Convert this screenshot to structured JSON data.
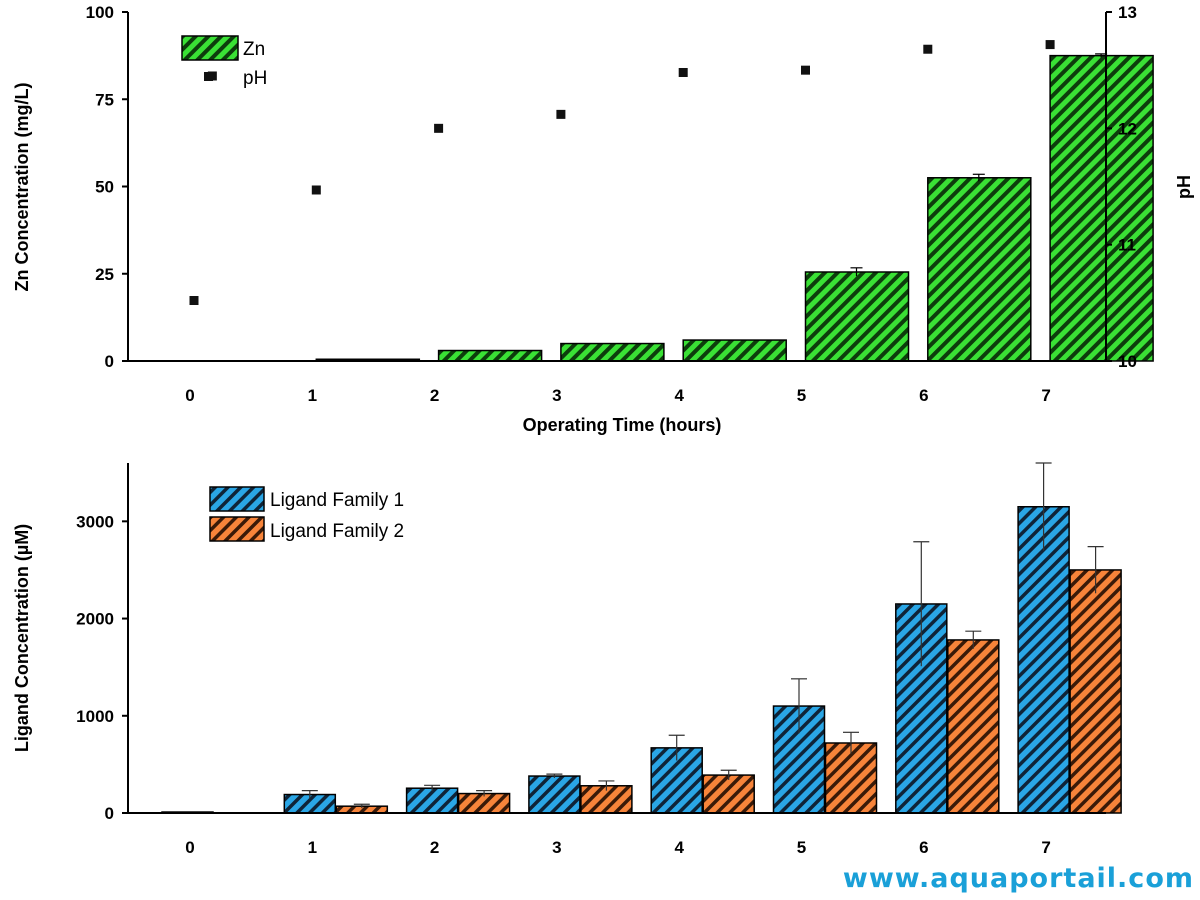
{
  "watermark": "www.aquaportail.com",
  "chart_data": [
    {
      "type": "bar",
      "x": [
        0,
        1,
        2,
        3,
        4,
        5,
        6,
        7
      ],
      "xlabel": "Operating Time (hours)",
      "ylabel": "Zn Concentration (mg/L)",
      "ylim": [
        0,
        100
      ],
      "yticks": [
        0,
        25,
        50,
        75,
        100
      ],
      "y2label": "pH",
      "y2lim": [
        10,
        13
      ],
      "y2ticks": [
        10,
        11,
        12,
        13
      ],
      "legend_position": "top-left",
      "series": [
        {
          "name": "Zn",
          "kind": "bar",
          "axis": "left",
          "color": "#22c21e",
          "values": [
            0,
            0.5,
            3,
            5,
            6,
            25.5,
            52.5,
            87.5
          ],
          "errors": [
            0,
            0,
            0,
            0,
            0,
            1.2,
            1.0,
            0.5
          ]
        },
        {
          "name": "pH",
          "kind": "scatter",
          "axis": "right",
          "color": "#111111",
          "points": [
            {
              "x": 0,
              "y": 10.52
            },
            {
              "x": 0.15,
              "y": 12.45
            },
            {
              "x": 1,
              "y": 11.47
            },
            {
              "x": 2,
              "y": 12.0
            },
            {
              "x": 3,
              "y": 12.12
            },
            {
              "x": 4,
              "y": 12.48
            },
            {
              "x": 5,
              "y": 12.5
            },
            {
              "x": 6,
              "y": 12.68
            },
            {
              "x": 7,
              "y": 12.72
            }
          ]
        }
      ]
    },
    {
      "type": "bar",
      "x": [
        0,
        1,
        2,
        3,
        4,
        5,
        6,
        7
      ],
      "xlabel": "",
      "ylabel": "Ligand Concentration (µM)",
      "ylim": [
        0,
        3600
      ],
      "yticks": [
        0,
        1000,
        2000,
        3000
      ],
      "legend_position": "top-left",
      "series": [
        {
          "name": "Ligand Family 1",
          "color": "#1e96d6",
          "values": [
            10,
            190,
            255,
            380,
            670,
            1100,
            2150,
            3150
          ],
          "errors": [
            0,
            40,
            30,
            20,
            130,
            280,
            640,
            450
          ]
        },
        {
          "name": "Ligand Family 2",
          "color": "#f07a2a",
          "values": [
            0,
            70,
            200,
            280,
            390,
            720,
            1780,
            2500
          ],
          "errors": [
            0,
            20,
            30,
            50,
            50,
            110,
            90,
            240
          ]
        }
      ]
    }
  ]
}
